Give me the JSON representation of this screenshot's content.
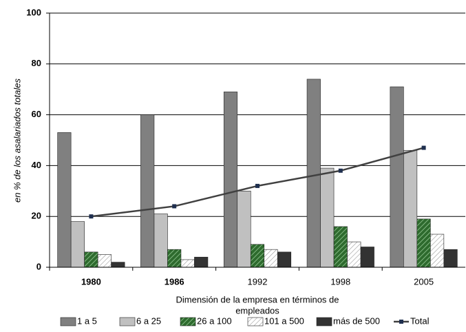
{
  "chart_data": {
    "type": "bar",
    "y_label": "en % de los asalariados totales",
    "x_label": [
      "Dimensión de la empresa en términos de",
      "empleados"
    ],
    "categories": [
      "1980",
      "1986",
      "1992",
      "1998",
      "2005"
    ],
    "series": [
      {
        "name": "1 a 5",
        "color": "#808080",
        "values": [
          53,
          60,
          69,
          74,
          71
        ]
      },
      {
        "name": "6 a 25",
        "color": "#c0c0c0",
        "values": [
          18,
          21,
          30,
          39,
          46
        ]
      },
      {
        "name": "26 a 100",
        "color": "#2e6b2e",
        "hatch": true,
        "values": [
          6,
          7,
          9,
          16,
          19
        ]
      },
      {
        "name": "101 a 500",
        "color": "#ffffff",
        "hatch": true,
        "values": [
          5,
          3,
          7,
          10,
          13
        ]
      },
      {
        "name": "más de 500",
        "color": "#333333",
        "values": [
          2,
          4,
          6,
          8,
          7
        ]
      },
      {
        "name": "Total",
        "type": "line",
        "color": "#404040",
        "values": [
          20,
          24,
          32,
          38,
          47
        ]
      }
    ],
    "ylim": [
      0,
      100
    ],
    "yticks": [
      0,
      20,
      40,
      60,
      80,
      100
    ],
    "grid": true,
    "legend": "bottom"
  }
}
